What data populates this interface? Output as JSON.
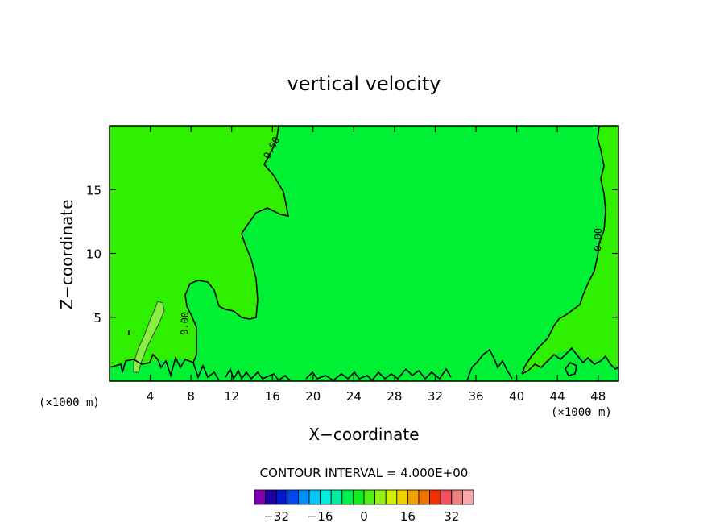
{
  "chart_data": {
    "type": "contour",
    "title": "vertical velocity",
    "xlabel": "X−coordinate",
    "ylabel": "Z−coordinate",
    "x_unit_left": "(×1000 m)",
    "x_unit_right": "(×1000 m)",
    "xlim": [
      0,
      50
    ],
    "ylim": [
      0,
      20
    ],
    "x_ticks": [
      4,
      8,
      12,
      16,
      20,
      24,
      28,
      32,
      36,
      40,
      44,
      48
    ],
    "y_ticks": [
      5,
      10,
      15
    ],
    "contour_interval_text": "CONTOUR INTERVAL = 4.000E+00",
    "contour_label": "0.00",
    "colorbar": {
      "colors": [
        "#7f00b0",
        "#2000a0",
        "#0018c8",
        "#0048f0",
        "#0090f8",
        "#00c8f8",
        "#00f0e0",
        "#00f0a0",
        "#00f050",
        "#10f020",
        "#50f010",
        "#90f010",
        "#d0f000",
        "#f0d000",
        "#f0a000",
        "#f07000",
        "#f03000",
        "#f05060",
        "#f08080",
        "#f8a8a8"
      ],
      "tick_labels": [
        "−32",
        "−16",
        "0",
        "16",
        "32"
      ]
    },
    "fill_colors": {
      "positive_region": "#2ef000",
      "near_zero_region": "#00f034",
      "strong_updraft": "#88f040"
    }
  }
}
